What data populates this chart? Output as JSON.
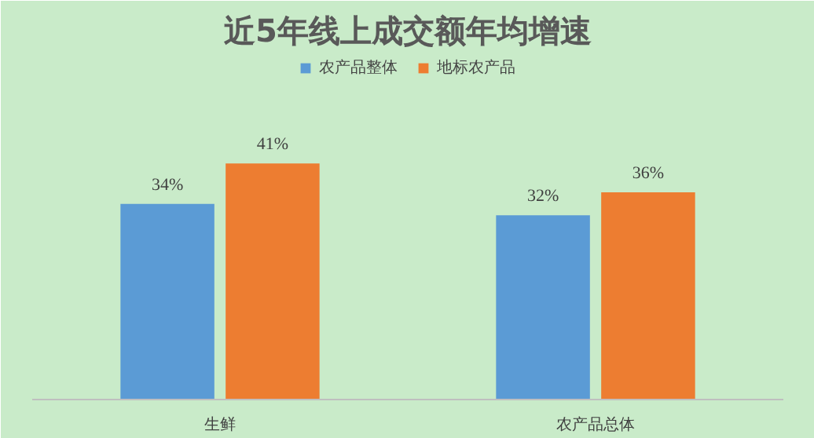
{
  "chart_data": {
    "type": "bar",
    "title": "近5年线上成交额年均增速",
    "categories": [
      "生鲜",
      "农产品总体"
    ],
    "series": [
      {
        "name": "农产品整体",
        "color": "#5b9bd5",
        "values": [
          34,
          32
        ],
        "value_labels": [
          "34%",
          "32%"
        ]
      },
      {
        "name": "地标农产品",
        "color": "#ed7d31",
        "values": [
          41,
          36
        ],
        "value_labels": [
          "41%",
          "36%"
        ]
      }
    ],
    "legend": "top"
  }
}
